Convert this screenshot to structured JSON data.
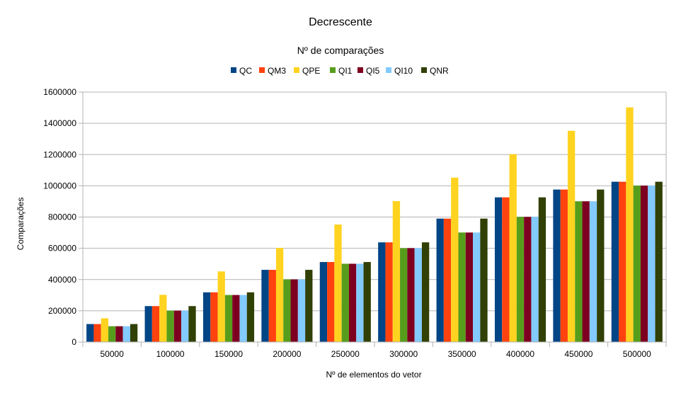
{
  "chart_data": {
    "type": "bar",
    "title": "Decrescente",
    "subtitle": "Nº de comparações",
    "xlabel": "Nº de elementos do vetor",
    "ylabel": "Comparações",
    "ylim": [
      0,
      1600000
    ],
    "yticks": [
      0,
      200000,
      400000,
      600000,
      800000,
      1000000,
      1200000,
      1400000,
      1600000
    ],
    "grid": true,
    "legend_position": "top",
    "categories": [
      "50000",
      "100000",
      "150000",
      "200000",
      "250000",
      "300000",
      "350000",
      "400000",
      "450000",
      "500000"
    ],
    "series": [
      {
        "name": "QC",
        "color": "#004586",
        "values": [
          115000,
          230000,
          318000,
          462000,
          512000,
          638000,
          790000,
          926000,
          976000,
          1026000
        ]
      },
      {
        "name": "QM3",
        "color": "#ff420e",
        "values": [
          115000,
          230000,
          318000,
          462000,
          512000,
          638000,
          790000,
          926000,
          976000,
          1026000
        ]
      },
      {
        "name": "QPE",
        "color": "#ffd320",
        "values": [
          152000,
          302000,
          452000,
          602000,
          752000,
          902000,
          1052000,
          1202000,
          1352000,
          1502000
        ]
      },
      {
        "name": "QI1",
        "color": "#579d1c",
        "values": [
          101000,
          201000,
          301000,
          401000,
          501000,
          601000,
          701000,
          801000,
          901000,
          1001000
        ]
      },
      {
        "name": "QI5",
        "color": "#7e0021",
        "values": [
          101000,
          201000,
          301000,
          401000,
          501000,
          601000,
          701000,
          801000,
          901000,
          1001000
        ]
      },
      {
        "name": "QI10",
        "color": "#83caff",
        "values": [
          101000,
          201000,
          301000,
          401000,
          501000,
          601000,
          701000,
          801000,
          901000,
          1001000
        ]
      },
      {
        "name": "QNR",
        "color": "#314004",
        "values": [
          115000,
          230000,
          318000,
          462000,
          512000,
          638000,
          790000,
          926000,
          976000,
          1026000
        ]
      }
    ]
  }
}
